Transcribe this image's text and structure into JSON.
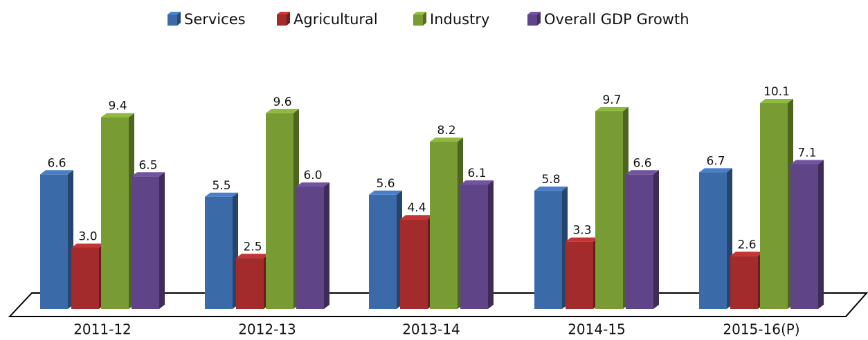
{
  "chart_data": {
    "type": "bar3d",
    "categories": [
      "2011-12",
      "2012-13",
      "2013-14",
      "2014-15",
      "2015-16(P)"
    ],
    "series": [
      {
        "name": "Services",
        "color": "#3b6aa8",
        "values": [
          6.6,
          5.5,
          5.6,
          5.8,
          6.7
        ],
        "value_labels": [
          "6.6",
          "5.5",
          "5.6",
          "5.8",
          "6.7"
        ]
      },
      {
        "name": "Agricultural",
        "color": "#a32b2b",
        "values": [
          3.0,
          2.5,
          4.4,
          3.3,
          2.6
        ],
        "value_labels": [
          "3.0",
          "2.5",
          "4.4",
          "3.3",
          "2.6"
        ]
      },
      {
        "name": "Industry",
        "color": "#789b33",
        "values": [
          9.4,
          9.6,
          8.2,
          9.7,
          10.1
        ],
        "value_labels": [
          "9.4",
          "9.6",
          "8.2",
          "9.7",
          "10.1"
        ]
      },
      {
        "name": "Overall GDP Growth",
        "color": "#5f4487",
        "values": [
          6.5,
          6.0,
          6.1,
          6.6,
          7.1
        ],
        "value_labels": [
          "6.5",
          "6.0",
          "6.1",
          "6.6",
          "7.1"
        ]
      }
    ],
    "legend": "top"
  }
}
